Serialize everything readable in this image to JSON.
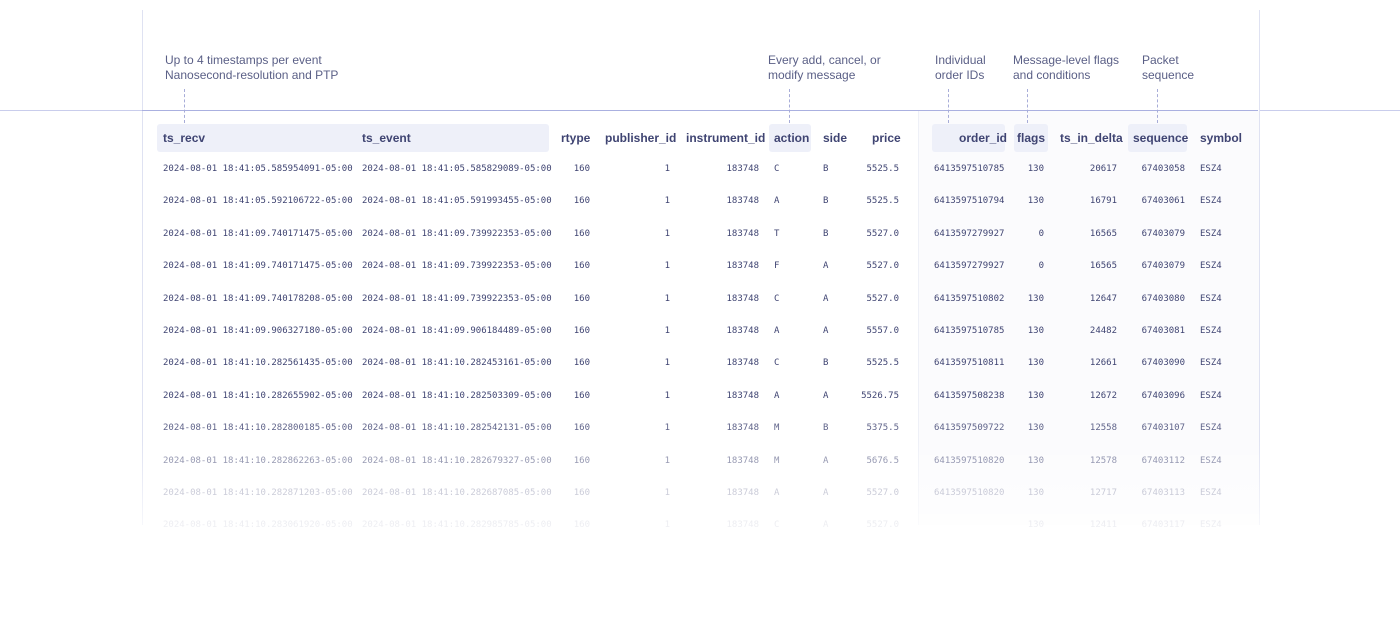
{
  "annotations": {
    "timestamps": "Up to 4 timestamps per event\nNanosecond-resolution and PTP",
    "actions": "Every add, cancel, or\nmodify message",
    "order_ids": "Individual\norder IDs",
    "flags": "Message-level flags\nand conditions",
    "sequence": "Packet\nsequence"
  },
  "columns": {
    "ts_recv": "ts_recv",
    "ts_event": "ts_event",
    "rtype": "rtype",
    "publisher_id": "publisher_id",
    "instrument_id": "instrument_id",
    "action": "action",
    "side": "side",
    "price": "price",
    "order_id": "order_id",
    "flags": "flags",
    "ts_in_delta": "ts_in_delta",
    "sequence": "sequence",
    "symbol": "symbol"
  },
  "rows": [
    {
      "ts_recv": "2024-08-01 18:41:05.585954091-05:00",
      "ts_event": "2024-08-01 18:41:05.585829089-05:00",
      "rtype": "160",
      "publisher_id": "1",
      "instrument_id": "183748",
      "action": "C",
      "side": "B",
      "price": "5525.5",
      "order_id": "6413597510785",
      "flags": "130",
      "ts_in_delta": "20617",
      "sequence": "67403058",
      "symbol": "ESZ4"
    },
    {
      "ts_recv": "2024-08-01 18:41:05.592106722-05:00",
      "ts_event": "2024-08-01 18:41:05.591993455-05:00",
      "rtype": "160",
      "publisher_id": "1",
      "instrument_id": "183748",
      "action": "A",
      "side": "B",
      "price": "5525.5",
      "order_id": "6413597510794",
      "flags": "130",
      "ts_in_delta": "16791",
      "sequence": "67403061",
      "symbol": "ESZ4"
    },
    {
      "ts_recv": "2024-08-01 18:41:09.740171475-05:00",
      "ts_event": "2024-08-01 18:41:09.739922353-05:00",
      "rtype": "160",
      "publisher_id": "1",
      "instrument_id": "183748",
      "action": "T",
      "side": "B",
      "price": "5527.0",
      "order_id": "6413597279927",
      "flags": "0",
      "ts_in_delta": "16565",
      "sequence": "67403079",
      "symbol": "ESZ4"
    },
    {
      "ts_recv": "2024-08-01 18:41:09.740171475-05:00",
      "ts_event": "2024-08-01 18:41:09.739922353-05:00",
      "rtype": "160",
      "publisher_id": "1",
      "instrument_id": "183748",
      "action": "F",
      "side": "A",
      "price": "5527.0",
      "order_id": "6413597279927",
      "flags": "0",
      "ts_in_delta": "16565",
      "sequence": "67403079",
      "symbol": "ESZ4"
    },
    {
      "ts_recv": "2024-08-01 18:41:09.740178208-05:00",
      "ts_event": "2024-08-01 18:41:09.739922353-05:00",
      "rtype": "160",
      "publisher_id": "1",
      "instrument_id": "183748",
      "action": "C",
      "side": "A",
      "price": "5527.0",
      "order_id": "6413597510802",
      "flags": "130",
      "ts_in_delta": "12647",
      "sequence": "67403080",
      "symbol": "ESZ4"
    },
    {
      "ts_recv": "2024-08-01 18:41:09.906327180-05:00",
      "ts_event": "2024-08-01 18:41:09.906184489-05:00",
      "rtype": "160",
      "publisher_id": "1",
      "instrument_id": "183748",
      "action": "A",
      "side": "A",
      "price": "5557.0",
      "order_id": "6413597510785",
      "flags": "130",
      "ts_in_delta": "24482",
      "sequence": "67403081",
      "symbol": "ESZ4"
    },
    {
      "ts_recv": "2024-08-01 18:41:10.282561435-05:00",
      "ts_event": "2024-08-01 18:41:10.282453161-05:00",
      "rtype": "160",
      "publisher_id": "1",
      "instrument_id": "183748",
      "action": "C",
      "side": "B",
      "price": "5525.5",
      "order_id": "6413597510811",
      "flags": "130",
      "ts_in_delta": "12661",
      "sequence": "67403090",
      "symbol": "ESZ4"
    },
    {
      "ts_recv": "2024-08-01 18:41:10.282655902-05:00",
      "ts_event": "2024-08-01 18:41:10.282503309-05:00",
      "rtype": "160",
      "publisher_id": "1",
      "instrument_id": "183748",
      "action": "A",
      "side": "A",
      "price": "5526.75",
      "order_id": "6413597508238",
      "flags": "130",
      "ts_in_delta": "12672",
      "sequence": "67403096",
      "symbol": "ESZ4"
    },
    {
      "ts_recv": "2024-08-01 18:41:10.282800185-05:00",
      "ts_event": "2024-08-01 18:41:10.282542131-05:00",
      "rtype": "160",
      "publisher_id": "1",
      "instrument_id": "183748",
      "action": "M",
      "side": "B",
      "price": "5375.5",
      "order_id": "6413597509722",
      "flags": "130",
      "ts_in_delta": "12558",
      "sequence": "67403107",
      "symbol": "ESZ4"
    },
    {
      "ts_recv": "2024-08-01 18:41:10.282862263-05:00",
      "ts_event": "2024-08-01 18:41:10.282679327-05:00",
      "rtype": "160",
      "publisher_id": "1",
      "instrument_id": "183748",
      "action": "M",
      "side": "A",
      "price": "5676.5",
      "order_id": "6413597510820",
      "flags": "130",
      "ts_in_delta": "12578",
      "sequence": "67403112",
      "symbol": "ESZ4"
    },
    {
      "ts_recv": "2024-08-01 18:41:10.282871203-05:00",
      "ts_event": "2024-08-01 18:41:10.282687085-05:00",
      "rtype": "160",
      "publisher_id": "1",
      "instrument_id": "183748",
      "action": "A",
      "side": "A",
      "price": "5527.0",
      "order_id": "6413597510820",
      "flags": "130",
      "ts_in_delta": "12717",
      "sequence": "67403113",
      "symbol": "ESZ4"
    },
    {
      "ts_recv": "2024-08-01 18:41:10.283061920-05:00",
      "ts_event": "2024-08-01 18:41:10.282985785-05:00",
      "rtype": "160",
      "publisher_id": "1",
      "instrument_id": "183748",
      "action": "C",
      "side": "A",
      "price": "5527.0",
      "order_id": "",
      "flags": "130",
      "ts_in_delta": "12411",
      "sequence": "67403117",
      "symbol": "ESZ4"
    }
  ]
}
